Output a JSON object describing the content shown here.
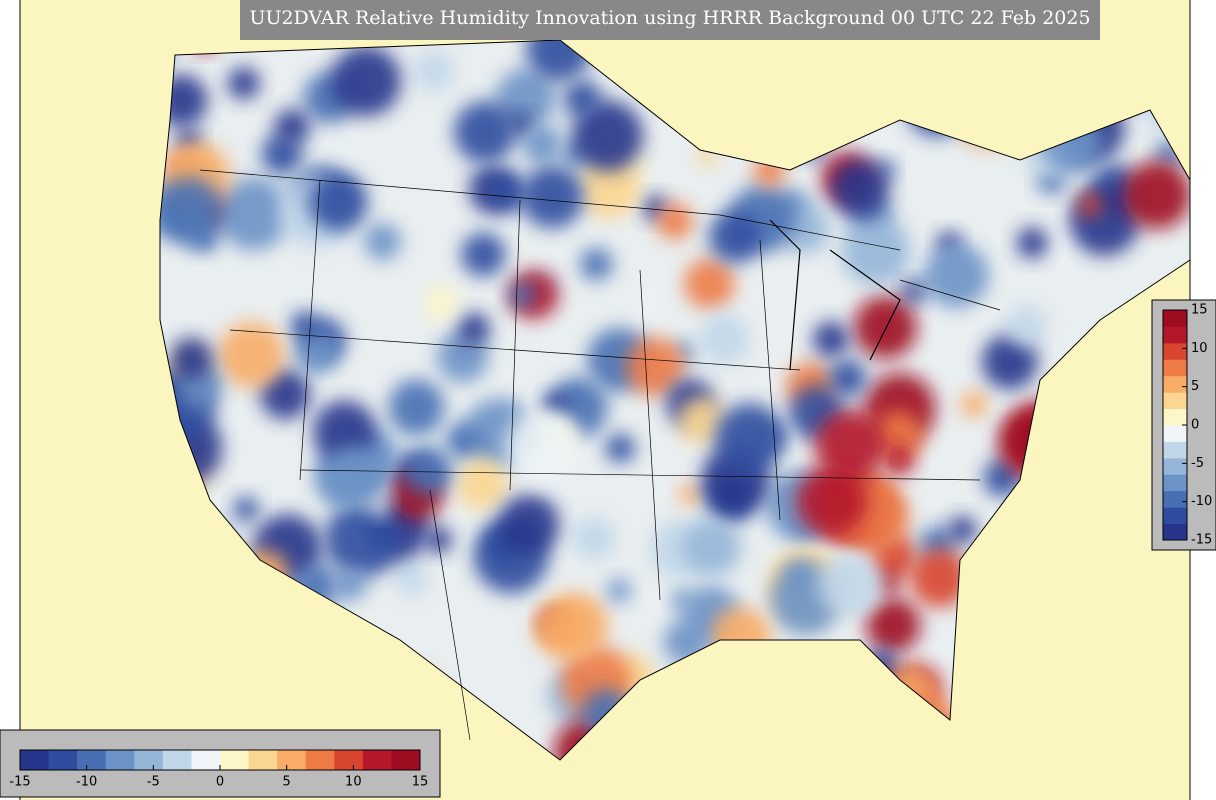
{
  "map": {
    "title": "UU2DVAR Relative Humidity Innovation using HRRR Background 00 UTC 22 Feb 2025",
    "colorbar": {
      "lim": [
        -15,
        15
      ],
      "ticks": [
        -15,
        -10,
        -5,
        0,
        5,
        10,
        15
      ],
      "colors": [
        "#27348b",
        "#2f4d9f",
        "#4670b3",
        "#6c93c6",
        "#95b6d8",
        "#c1d7e9",
        "#eef4f7",
        "#fcf6c8",
        "#fbd690",
        "#f8ac66",
        "#ee7b46",
        "#d8452f",
        "#b4172a",
        "#9e0c22"
      ]
    }
  }
}
